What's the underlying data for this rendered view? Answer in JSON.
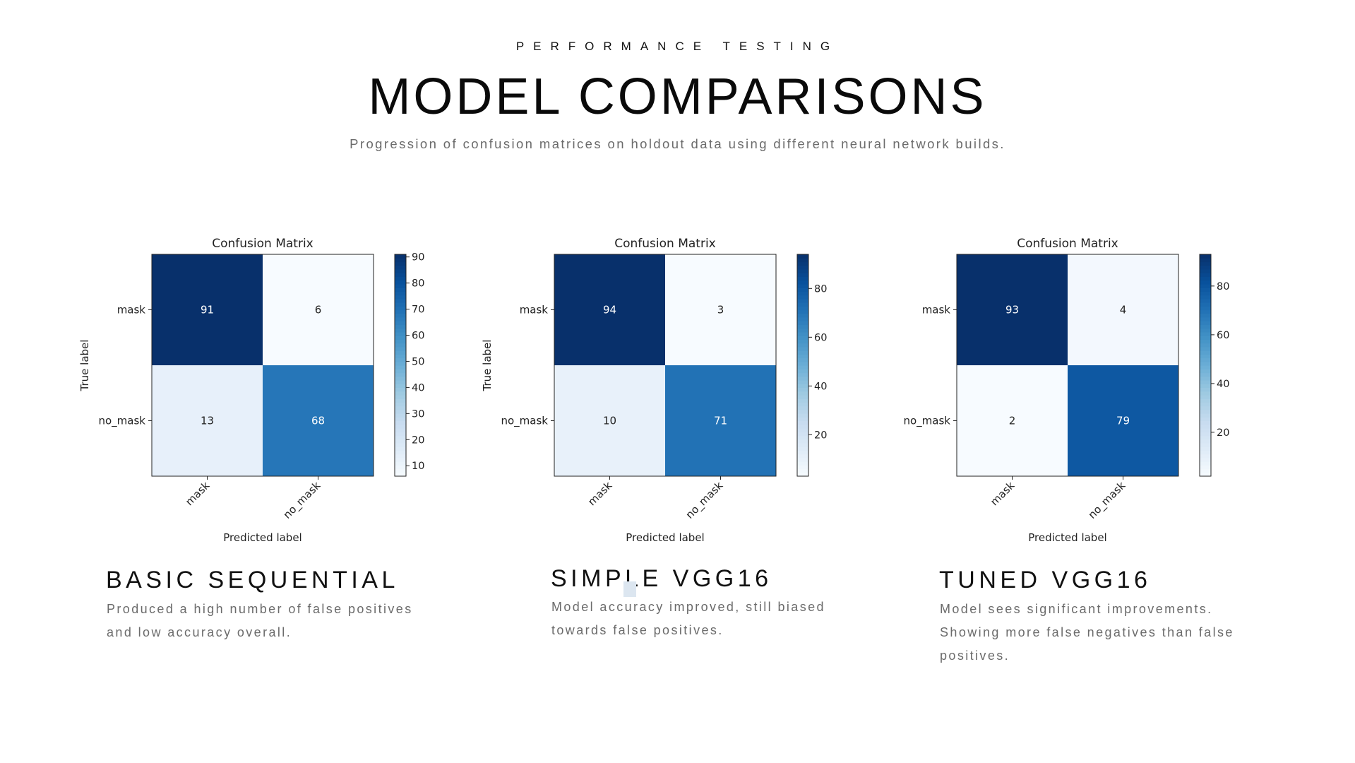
{
  "header": {
    "kicker": "PERFORMANCE TESTING",
    "title": "MODEL COMPARISONS",
    "subtitle": "Progression of confusion matrices on holdout data using different neural network builds."
  },
  "models": [
    {
      "title": "BASIC SEQUENTIAL",
      "desc_lines": [
        "Produced a high number of false positives",
        "and low accuracy overall."
      ]
    },
    {
      "title": "SIMPLE VGG16",
      "desc_lines": [
        "Model accuracy improved, still biased",
        "towards false positives."
      ]
    },
    {
      "title": "TUNED VGG16",
      "desc_lines": [
        "Model sees significant improvements.",
        "Showing more false negatives than false",
        "positives."
      ]
    }
  ],
  "chart_data": [
    {
      "type": "heatmap",
      "title": "Confusion Matrix",
      "xlabel": "Predicted label",
      "ylabel": "True label",
      "x_categories": [
        "mask",
        "no_mask"
      ],
      "y_categories": [
        "mask",
        "no_mask"
      ],
      "values": [
        [
          91,
          6
        ],
        [
          13,
          68
        ]
      ],
      "colormap": "Blues",
      "colorbar_range": [
        6,
        91
      ],
      "colorbar_ticks": [
        10,
        20,
        30,
        40,
        50,
        60,
        70,
        80,
        90
      ]
    },
    {
      "type": "heatmap",
      "title": "Confusion Matrix",
      "xlabel": "Predicted label",
      "ylabel": "True label",
      "x_categories": [
        "mask",
        "no_mask"
      ],
      "y_categories": [
        "mask",
        "no_mask"
      ],
      "values": [
        [
          94,
          3
        ],
        [
          10,
          71
        ]
      ],
      "colormap": "Blues",
      "colorbar_range": [
        3,
        94
      ],
      "colorbar_ticks": [
        20,
        40,
        60,
        80
      ]
    },
    {
      "type": "heatmap",
      "title": "Confusion Matrix",
      "xlabel": "Predicted label",
      "ylabel": "",
      "x_categories": [
        "mask",
        "no_mask"
      ],
      "y_categories": [
        "mask",
        "no_mask"
      ],
      "values": [
        [
          93,
          4
        ],
        [
          2,
          79
        ]
      ],
      "colormap": "Blues",
      "colorbar_range": [
        2,
        93
      ],
      "colorbar_ticks": [
        20,
        40,
        60,
        80
      ]
    }
  ]
}
